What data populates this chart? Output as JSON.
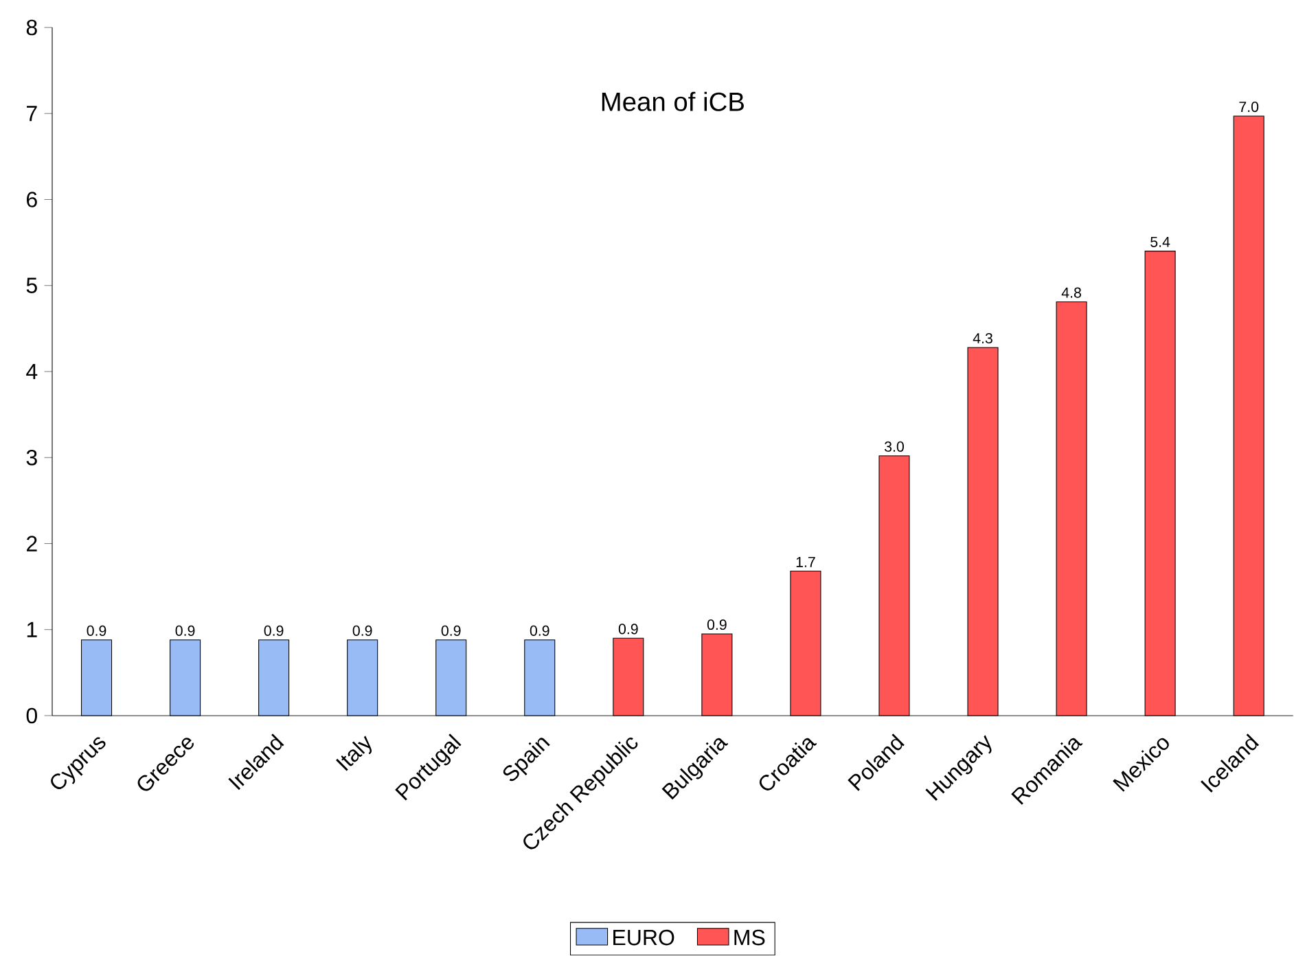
{
  "chart_data": {
    "type": "bar",
    "title": "Mean of iCB",
    "categories": [
      "Cyprus",
      "Greece",
      "Ireland",
      "Italy",
      "Portugal",
      "Spain",
      "Czech Republic",
      "Bulgaria",
      "Croatia",
      "Poland",
      "Hungary",
      "Romania",
      "Mexico",
      "Iceland"
    ],
    "series": [
      {
        "name": "EURO",
        "color": "#99bbf5",
        "values": [
          0.88,
          0.88,
          0.88,
          0.88,
          0.88,
          0.88,
          null,
          null,
          null,
          null,
          null,
          null,
          null,
          null
        ],
        "value_labels": [
          "0.9",
          "0.9",
          "0.9",
          "0.9",
          "0.9",
          "0.9",
          null,
          null,
          null,
          null,
          null,
          null,
          null,
          null
        ]
      },
      {
        "name": "MS",
        "color": "#ff5555",
        "values": [
          null,
          null,
          null,
          null,
          null,
          null,
          0.9,
          0.95,
          1.68,
          3.02,
          4.28,
          4.81,
          5.4,
          6.97
        ],
        "value_labels": [
          null,
          null,
          null,
          null,
          null,
          null,
          "0.9",
          "0.9",
          "1.7",
          "3.0",
          "4.3",
          "4.8",
          "5.4",
          "7.0"
        ]
      }
    ],
    "ylim": [
      0,
      8
    ],
    "yticks": [
      0,
      1,
      2,
      3,
      4,
      5,
      6,
      7,
      8
    ],
    "legend": "bottom"
  }
}
